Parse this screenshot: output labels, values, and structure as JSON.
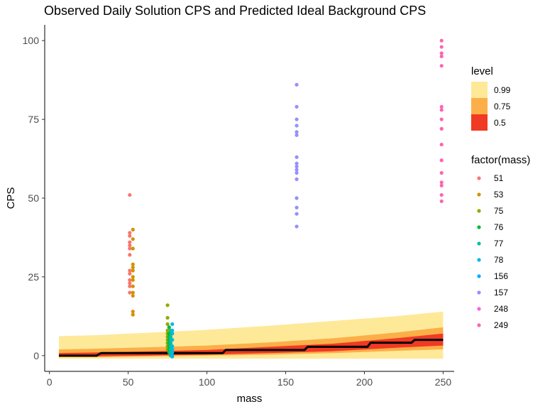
{
  "chart_data": {
    "type": "scatter",
    "title": "Observed Daily Solution CPS and Predicted Ideal Background CPS",
    "xlabel": "mass",
    "ylabel": "CPS",
    "xlim": [
      -3,
      257
    ],
    "ylim": [
      -5,
      105
    ],
    "x_ticks": [
      0,
      50,
      100,
      150,
      200,
      250
    ],
    "y_ticks": [
      0,
      25,
      50,
      75,
      100
    ],
    "grid": false,
    "legend_position": "right",
    "bands_legend": {
      "title": "level",
      "items": [
        {
          "label": "0.99",
          "color": "#FEE999"
        },
        {
          "label": "0.75",
          "color": "#FCAF48"
        },
        {
          "label": "0.5",
          "color": "#F03A23"
        }
      ]
    },
    "bands": {
      "x": [
        6,
        30,
        60,
        100,
        140,
        180,
        220,
        250
      ],
      "level_0_99": {
        "lower": [
          -1,
          -1,
          -1,
          -1,
          -1,
          -1,
          -1,
          -1
        ],
        "upper": [
          6.2,
          6.5,
          7.2,
          8.2,
          9.5,
          11.0,
          12.5,
          14.0
        ]
      },
      "level_0_75": {
        "lower": [
          -0.5,
          -0.5,
          -0.3,
          0,
          0.3,
          0.8,
          1.5,
          2.0
        ],
        "upper": [
          2.0,
          2.2,
          2.6,
          3.2,
          4.2,
          5.5,
          7.3,
          9.0
        ]
      },
      "level_0_5": {
        "lower": [
          -0.2,
          -0.2,
          0,
          0.3,
          0.8,
          1.4,
          2.5,
          3.2
        ],
        "upper": [
          0.8,
          1.0,
          1.3,
          1.8,
          2.8,
          3.8,
          5.5,
          7.0
        ]
      }
    },
    "median_line": {
      "x": [
        6,
        30,
        31,
        32,
        33,
        110,
        111,
        112,
        162,
        163,
        164,
        202,
        203,
        204,
        230,
        231,
        232,
        250
      ],
      "y": [
        0,
        0,
        0.3,
        0.6,
        0.8,
        0.8,
        1.3,
        1.8,
        1.8,
        2.3,
        2.8,
        2.8,
        3.5,
        4.1,
        4.1,
        4.6,
        5.0,
        5.0
      ]
    },
    "series_legend_title": "factor(mass)",
    "series": [
      {
        "name": "51",
        "color": "#F8766D",
        "x": 51,
        "values": [
          51,
          39,
          38,
          36,
          35,
          34,
          32,
          27,
          26,
          24,
          23,
          22,
          20
        ]
      },
      {
        "name": "53",
        "color": "#D39200",
        "x": 53,
        "values": [
          40,
          37,
          34,
          29,
          28,
          27,
          25,
          24,
          22,
          20,
          19,
          14,
          13
        ]
      },
      {
        "name": "75",
        "color": "#93AA00",
        "x": 75,
        "values": [
          16,
          12,
          10,
          8,
          7,
          6,
          5,
          4,
          3,
          2
        ]
      },
      {
        "name": "76",
        "color": "#00BA38",
        "x": 76,
        "values": [
          9,
          7,
          6,
          5,
          4,
          3,
          2,
          1
        ]
      },
      {
        "name": "77",
        "color": "#00C19F",
        "x": 77,
        "values": [
          8,
          6,
          5,
          4,
          3,
          2,
          1,
          0.5,
          0
        ]
      },
      {
        "name": "78",
        "color": "#00B9E3",
        "x": 78,
        "values": [
          10,
          8,
          7,
          5,
          3,
          2,
          1,
          0,
          -0.3
        ]
      },
      {
        "name": "156",
        "color": "#00ADFA",
        "x": 156,
        "values": []
      },
      {
        "name": "157",
        "color": "#9590FF",
        "x": 157,
        "values": [
          86,
          79,
          75,
          73,
          71,
          70,
          63,
          61,
          60,
          59,
          58,
          56,
          50,
          47,
          45,
          41
        ]
      },
      {
        "name": "248",
        "color": "#F564E3",
        "x": 248,
        "values": []
      },
      {
        "name": "249",
        "color": "#FF64B0",
        "x": 249,
        "values": [
          100,
          98,
          96,
          95,
          92,
          79,
          78,
          75,
          72,
          67,
          62,
          58,
          55,
          54,
          51,
          49
        ]
      }
    ]
  }
}
